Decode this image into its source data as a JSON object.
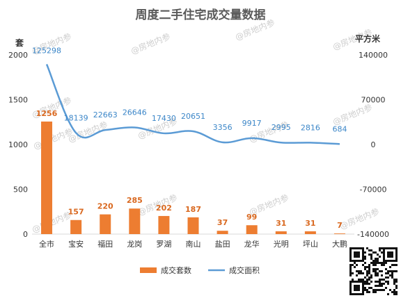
{
  "chart_data": {
    "type": "bar+line",
    "title": "周度二手住宅成交量数据",
    "categories": [
      "全市",
      "宝安",
      "福田",
      "龙岗",
      "罗湖",
      "南山",
      "盐田",
      "龙华",
      "光明",
      "坪山",
      "大鹏"
    ],
    "series": [
      {
        "name": "成交套数",
        "type": "bar",
        "axis": "left",
        "color": "#ed7d31",
        "values": [
          1256,
          157,
          220,
          285,
          202,
          187,
          37,
          99,
          31,
          31,
          7
        ]
      },
      {
        "name": "成交面积",
        "type": "line",
        "axis": "right",
        "color": "#5b9bd5",
        "values": [
          125298,
          18139,
          22663,
          26646,
          17430,
          20651,
          3356,
          9917,
          2995,
          2816,
          684
        ]
      }
    ],
    "y_left": {
      "unit": "套",
      "range": [
        0,
        2000
      ],
      "ticks": [
        "0",
        "500",
        "1000",
        "1500",
        "2000"
      ]
    },
    "y_right": {
      "unit": "平方米",
      "range": [
        -140000,
        140000
      ],
      "ticks": [
        "-140000",
        "-70000",
        "0",
        "70000",
        "140000"
      ]
    },
    "grid": false,
    "legend_position": "bottom"
  },
  "watermark": "@房地内参",
  "qr_icon": "qr-code-icon"
}
